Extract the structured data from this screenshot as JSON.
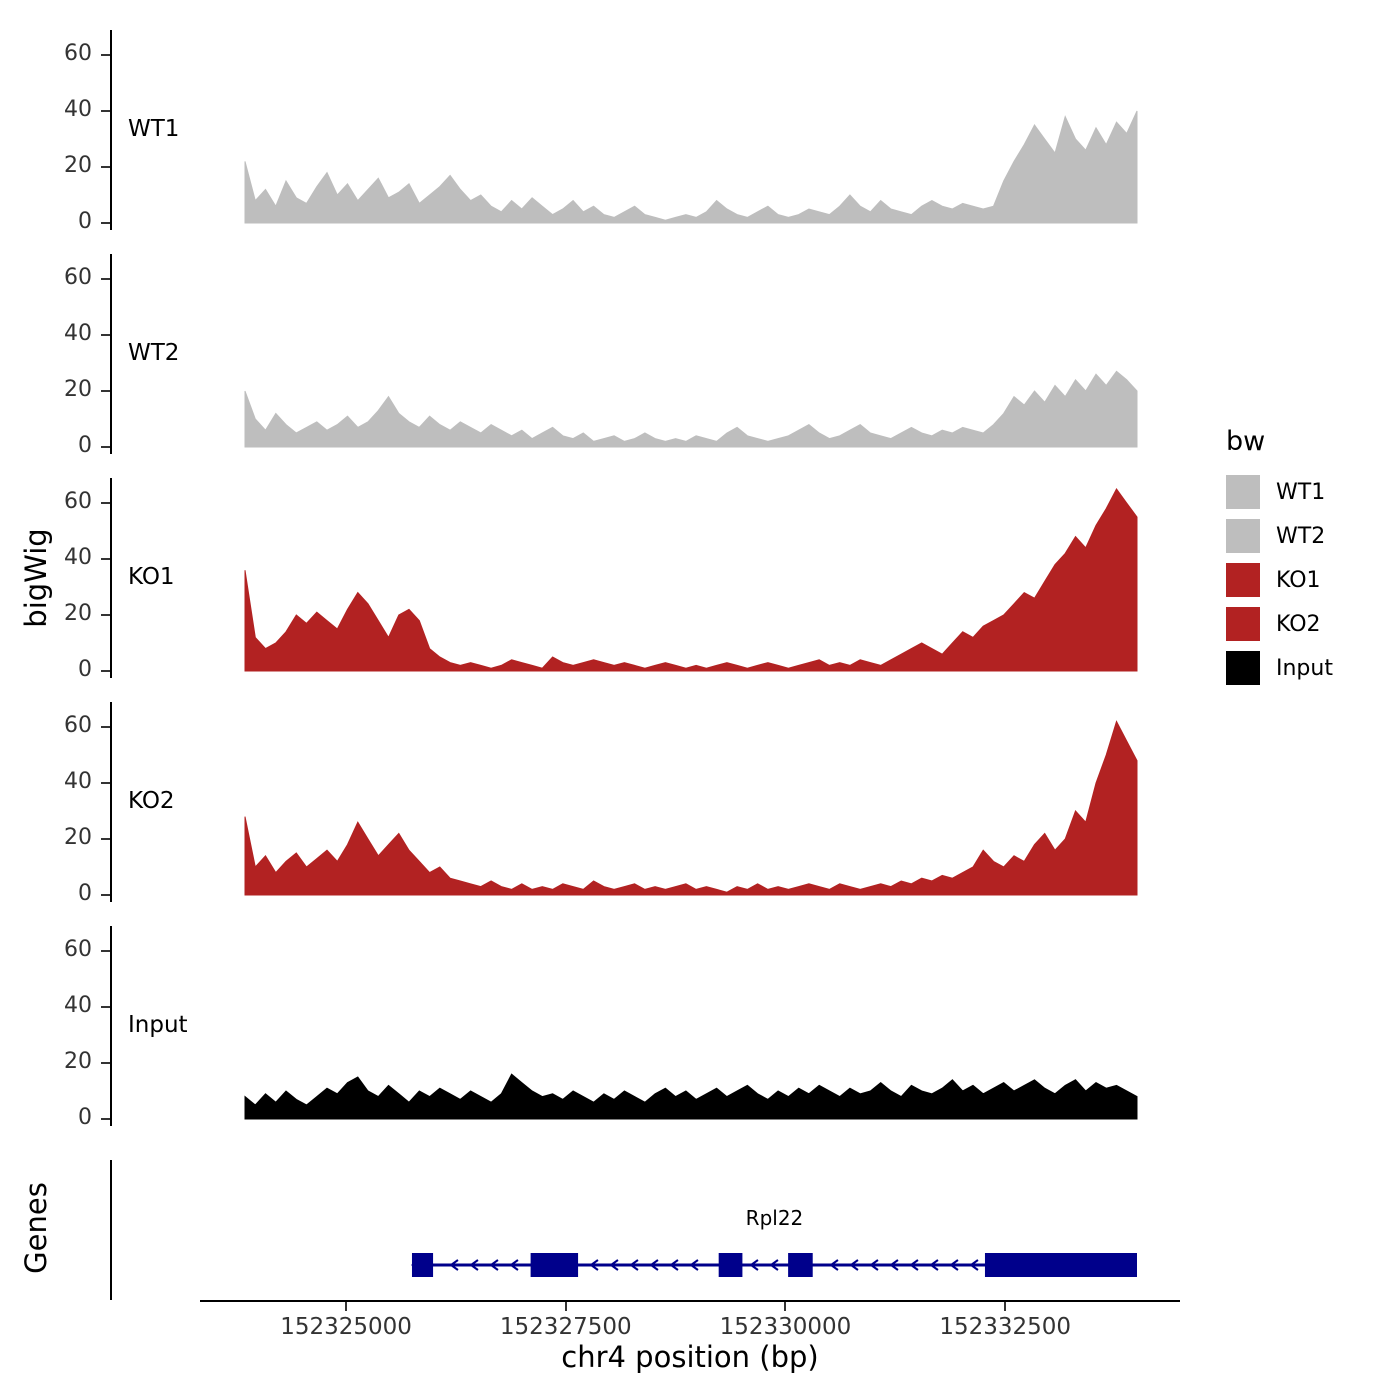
{
  "figure": {
    "y_axis_label": "bigWig",
    "genes_axis_label": "Genes",
    "x_axis_label": "chr4 position (bp)",
    "colors": {
      "wt": "#BEBEBE",
      "ko": "#B22222",
      "input": "#000000",
      "gene": "#00008B",
      "axis": "#000000",
      "tick_text": "#333333"
    }
  },
  "legend": {
    "title": "bw",
    "items": [
      {
        "label": "WT1",
        "color": "#BEBEBE"
      },
      {
        "label": "WT2",
        "color": "#BEBEBE"
      },
      {
        "label": "KO1",
        "color": "#B22222"
      },
      {
        "label": "KO2",
        "color": "#B22222"
      },
      {
        "label": "Input",
        "color": "#000000"
      }
    ]
  },
  "chart_data": {
    "type": "area",
    "title": "",
    "xlabel": "chr4 position (bp)",
    "ylabel": "bigWig",
    "x_range_bp": [
      152323850,
      152334000
    ],
    "x_ticks": [
      {
        "value": 152325000,
        "label": "152325000"
      },
      {
        "value": 152327500,
        "label": "152327500"
      },
      {
        "value": 152330000,
        "label": "152330000"
      },
      {
        "value": 152332500,
        "label": "152332500"
      }
    ],
    "y_ticks": [
      0,
      20,
      40,
      60
    ],
    "y_max": 68,
    "grid": false,
    "legend_position": "right",
    "tracks": [
      {
        "name": "WT1",
        "color": "#BEBEBE",
        "values": [
          22,
          8,
          12,
          6,
          15,
          9,
          7,
          13,
          18,
          10,
          14,
          8,
          12,
          16,
          9,
          11,
          14,
          7,
          10,
          13,
          17,
          12,
          8,
          10,
          6,
          4,
          8,
          5,
          9,
          6,
          3,
          5,
          8,
          4,
          6,
          3,
          2,
          4,
          6,
          3,
          2,
          1,
          2,
          3,
          2,
          4,
          8,
          5,
          3,
          2,
          4,
          6,
          3,
          2,
          3,
          5,
          4,
          3,
          6,
          10,
          6,
          4,
          8,
          5,
          4,
          3,
          6,
          8,
          6,
          5,
          7,
          6,
          5,
          6,
          15,
          22,
          28,
          35,
          30,
          25,
          38,
          30,
          26,
          34,
          28,
          36,
          32,
          40
        ]
      },
      {
        "name": "WT2",
        "color": "#BEBEBE",
        "values": [
          20,
          10,
          6,
          12,
          8,
          5,
          7,
          9,
          6,
          8,
          11,
          7,
          9,
          13,
          18,
          12,
          9,
          7,
          11,
          8,
          6,
          9,
          7,
          5,
          8,
          6,
          4,
          6,
          3,
          5,
          7,
          4,
          3,
          5,
          2,
          3,
          4,
          2,
          3,
          5,
          3,
          2,
          3,
          2,
          4,
          3,
          2,
          5,
          7,
          4,
          3,
          2,
          3,
          4,
          6,
          8,
          5,
          3,
          4,
          6,
          8,
          5,
          4,
          3,
          5,
          7,
          5,
          4,
          6,
          5,
          7,
          6,
          5,
          8,
          12,
          18,
          15,
          20,
          16,
          22,
          18,
          24,
          20,
          26,
          22,
          27,
          24,
          20
        ]
      },
      {
        "name": "KO1",
        "color": "#B22222",
        "values": [
          36,
          12,
          8,
          10,
          14,
          20,
          17,
          21,
          18,
          15,
          22,
          28,
          24,
          18,
          12,
          20,
          22,
          18,
          8,
          5,
          3,
          2,
          3,
          2,
          1,
          2,
          4,
          3,
          2,
          1,
          5,
          3,
          2,
          3,
          4,
          3,
          2,
          3,
          2,
          1,
          2,
          3,
          2,
          1,
          2,
          1,
          2,
          3,
          2,
          1,
          2,
          3,
          2,
          1,
          2,
          3,
          4,
          2,
          3,
          2,
          4,
          3,
          2,
          4,
          6,
          8,
          10,
          8,
          6,
          10,
          14,
          12,
          16,
          18,
          20,
          24,
          28,
          26,
          32,
          38,
          42,
          48,
          44,
          52,
          58,
          65,
          60,
          55
        ]
      },
      {
        "name": "KO2",
        "color": "#B22222",
        "values": [
          28,
          10,
          14,
          8,
          12,
          15,
          10,
          13,
          16,
          12,
          18,
          26,
          20,
          14,
          18,
          22,
          16,
          12,
          8,
          10,
          6,
          5,
          4,
          3,
          5,
          3,
          2,
          4,
          2,
          3,
          2,
          4,
          3,
          2,
          5,
          3,
          2,
          3,
          4,
          2,
          3,
          2,
          3,
          4,
          2,
          3,
          2,
          1,
          3,
          2,
          4,
          2,
          3,
          2,
          3,
          4,
          3,
          2,
          4,
          3,
          2,
          3,
          4,
          3,
          5,
          4,
          6,
          5,
          7,
          6,
          8,
          10,
          16,
          12,
          10,
          14,
          12,
          18,
          22,
          16,
          20,
          30,
          26,
          40,
          50,
          62,
          55,
          48
        ]
      },
      {
        "name": "Input",
        "color": "#000000",
        "values": [
          8,
          5,
          9,
          6,
          10,
          7,
          5,
          8,
          11,
          9,
          13,
          15,
          10,
          8,
          12,
          9,
          6,
          10,
          8,
          11,
          9,
          7,
          10,
          8,
          6,
          9,
          16,
          13,
          10,
          8,
          9,
          7,
          10,
          8,
          6,
          9,
          7,
          10,
          8,
          6,
          9,
          11,
          8,
          10,
          7,
          9,
          11,
          8,
          10,
          12,
          9,
          7,
          10,
          8,
          11,
          9,
          12,
          10,
          8,
          11,
          9,
          10,
          13,
          10,
          8,
          12,
          10,
          9,
          11,
          14,
          10,
          12,
          9,
          11,
          13,
          10,
          12,
          14,
          11,
          9,
          12,
          14,
          10,
          13,
          11,
          12,
          10,
          8
        ]
      }
    ],
    "gene": {
      "label": "Rpl22",
      "color": "#00008B",
      "start": 152325750,
      "end": 152334000,
      "direction": "left",
      "exons": [
        [
          152325750,
          152325990
        ],
        [
          152327100,
          152327640
        ],
        [
          152329240,
          152329510
        ],
        [
          152330030,
          152330310
        ],
        [
          152332270,
          152334000
        ]
      ]
    }
  }
}
